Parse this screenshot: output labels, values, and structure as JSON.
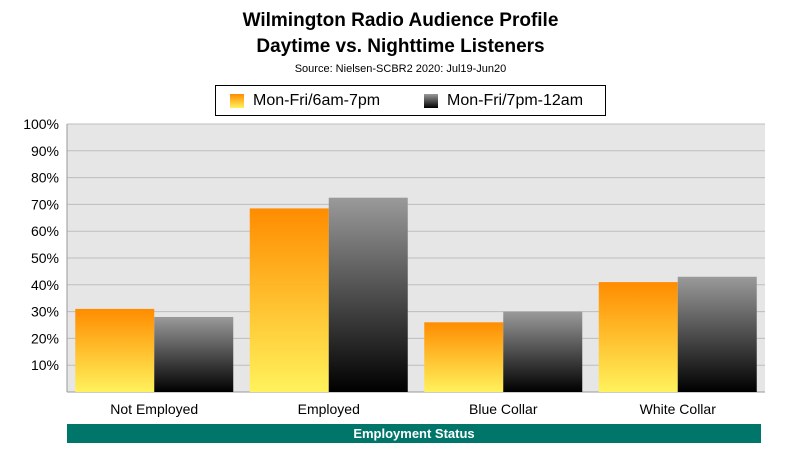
{
  "title_line1": "Wilmington Radio Audience Profile",
  "title_line2": "Daytime vs. Nighttime Listeners",
  "subtitle": "Source: Nielsen-SCBR2 2020: Jul19-Jun20",
  "chart_data": {
    "type": "bar",
    "title": "Wilmington Radio Audience Profile Daytime vs. Nighttime Listeners",
    "xlabel": "Employment Status",
    "ylabel": "",
    "categories": [
      "Not Employed",
      "Employed",
      "Blue Collar",
      "White Collar"
    ],
    "series": [
      {
        "name": "Mon-Fri/6am-7pm",
        "values": [
          31,
          68.5,
          26,
          41
        ],
        "color_top": "#ff8c00",
        "color_bottom": "#fff25c"
      },
      {
        "name": "Mon-Fri/7pm-12am",
        "values": [
          28,
          72.5,
          30,
          43
        ],
        "color_top": "#9a9a9a",
        "color_bottom": "#000000"
      }
    ],
    "ylim": [
      0,
      100
    ],
    "yticks": [
      "10%",
      "20%",
      "30%",
      "40%",
      "50%",
      "60%",
      "70%",
      "80%",
      "90%",
      "100%"
    ],
    "grid": true,
    "legend_position": "top"
  },
  "colors": {
    "plot_background": "#e6e6e6",
    "axis_band": "#00766a"
  }
}
